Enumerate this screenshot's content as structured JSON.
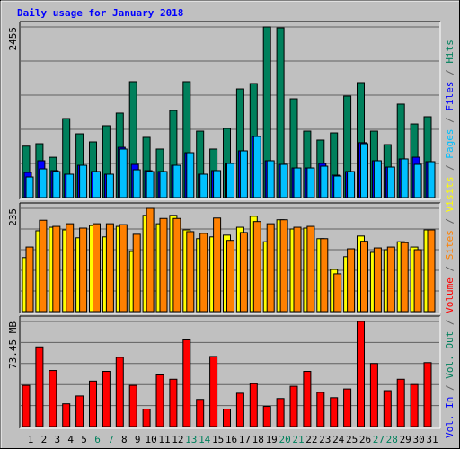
{
  "title": "Daily usage for January 2018",
  "title_color": "#0000ff",
  "categories": [
    "1",
    "2",
    "3",
    "4",
    "5",
    "6",
    "7",
    "8",
    "9",
    "10",
    "11",
    "12",
    "13",
    "14",
    "15",
    "16",
    "17",
    "18",
    "19",
    "20",
    "21",
    "22",
    "23",
    "24",
    "25",
    "26",
    "27",
    "28",
    "29",
    "30",
    "31"
  ],
  "highlight_indices": [
    5,
    6,
    12,
    13,
    19,
    20,
    26,
    27
  ],
  "highlight_color": "#00805c",
  "legend_separator": " / ",
  "legend_separator_color": "#606060",
  "chart_data": [
    {
      "type": "bar",
      "ylim": [
        0,
        2455
      ],
      "yticks": [
        2455
      ],
      "grid_divisions": 5,
      "series": [
        {
          "name": "Hits",
          "color": "#00805c",
          "values": [
            740,
            775,
            580,
            1137,
            917,
            801,
            1034,
            1215,
            1667,
            866,
            698,
            1253,
            1667,
            956,
            698,
            995,
            1563,
            1641,
            2455,
            2442,
            1421,
            956,
            827,
            930,
            1460,
            1654,
            956,
            762,
            1344,
            1059,
            1163
          ]
        },
        {
          "name": "Files",
          "color": "#0000ff",
          "values": [
            362,
            530,
            388,
            336,
            465,
            375,
            336,
            723,
            478,
            388,
            375,
            465,
            646,
            336,
            388,
            491,
            672,
            879,
            530,
            478,
            426,
            426,
            491,
            323,
            375,
            790,
            530,
            439,
            556,
            581,
            517
          ]
        },
        {
          "name": "Pages",
          "color": "#00c0ff",
          "values": [
            297,
            413,
            375,
            336,
            465,
            375,
            336,
            698,
            400,
            375,
            375,
            465,
            646,
            336,
            388,
            491,
            672,
            879,
            530,
            478,
            426,
            426,
            452,
            310,
            375,
            775,
            530,
            439,
            556,
            478,
            517
          ]
        }
      ]
    },
    {
      "type": "bar",
      "ylim": [
        0,
        235
      ],
      "yticks": [
        235
      ],
      "grid_divisions": 5,
      "series": [
        {
          "name": "Visits",
          "color": "#ffff00",
          "values": [
            123,
            184,
            192,
            186,
            168,
            196,
            170,
            194,
            137,
            219,
            200,
            219,
            186,
            166,
            170,
            174,
            192,
            217,
            159,
            209,
            188,
            190,
            166,
            96,
            125,
            172,
            135,
            141,
            159,
            147,
            186
          ]
        },
        {
          "name": "Sites",
          "color": "#ff8000",
          "values": [
            147,
            208,
            194,
            200,
            190,
            200,
            200,
            198,
            176,
            235,
            212,
            212,
            182,
            178,
            213,
            162,
            180,
            205,
            200,
            209,
            192,
            194,
            166,
            86,
            143,
            160,
            145,
            147,
            157,
            141,
            186
          ]
        }
      ]
    },
    {
      "type": "bar",
      "ylim": [
        0,
        73.45
      ],
      "yticks": [
        {
          "value": 73.45,
          "label": "73.45 MB"
        }
      ],
      "grid_divisions": 5,
      "extra_legend": [
        {
          "name": "Vol. Out",
          "color": "#00805c"
        },
        {
          "name": "Vol. In",
          "color": "#0000ff"
        }
      ],
      "series": [
        {
          "name": "Volume",
          "color": "#ff0000",
          "values": [
            28.8,
            55.7,
            39.2,
            15.9,
            21.4,
            31.8,
            38.6,
            48.4,
            28.8,
            12.2,
            36.1,
            33.1,
            60.6,
            19.0,
            49.0,
            12.2,
            23.3,
            30.0,
            14.1,
            19.6,
            28.2,
            38.6,
            23.9,
            20.2,
            26.3,
            73.45,
            44.1,
            25.1,
            33.1,
            29.4,
            44.7
          ]
        }
      ]
    }
  ]
}
